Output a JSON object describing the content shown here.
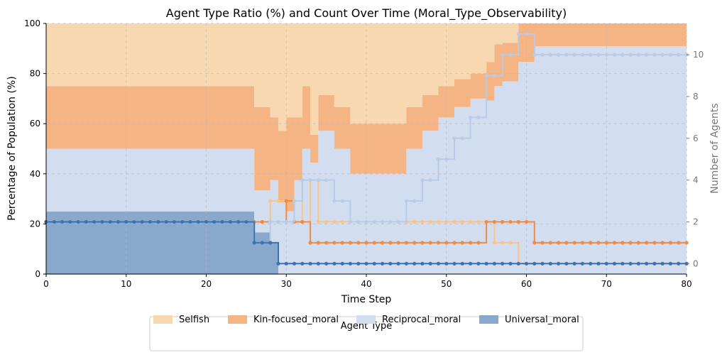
{
  "chart_data": {
    "type": "area",
    "title": "Agent Type Ratio (%) and Count Over Time (Moral_Type_Observability)",
    "xlabel": "Time Step",
    "ylabel": "Percentage of Population (%)",
    "y2label": "Number of Agents",
    "xlim": [
      0,
      80
    ],
    "ylim": [
      0,
      100
    ],
    "y2lim": [
      -0.5,
      11.5
    ],
    "xticks": [
      0,
      10,
      20,
      30,
      40,
      50,
      60,
      70,
      80
    ],
    "yticks": [
      0,
      20,
      40,
      60,
      80,
      100
    ],
    "y2ticks": [
      0,
      2,
      4,
      6,
      8,
      10
    ],
    "grid": true,
    "legend": {
      "title": "Agent Type",
      "placement": "bottom-center",
      "entries": [
        "Selfish",
        "Kin-focused_moral",
        "Reciprocal_moral",
        "Universal_moral"
      ]
    },
    "colors": {
      "Selfish_area": "#f8d8b0",
      "Kin-focused_moral_area": "#f4b483",
      "Reciprocal_moral_area": "#d3ddf0",
      "Universal_moral_area": "#89a9cc",
      "Selfish_line": "#f8c48c",
      "Kin-focused_moral_line": "#ef8b44",
      "Reciprocal_moral_line": "#b9cbe5",
      "Universal_moral_line": "#3b72b0"
    },
    "series": [
      {
        "name": "Selfish",
        "counts": [
          2,
          2,
          2,
          2,
          2,
          2,
          2,
          2,
          2,
          2,
          2,
          2,
          2,
          2,
          2,
          2,
          2,
          2,
          2,
          2,
          2,
          2,
          2,
          2,
          2,
          2,
          2,
          2,
          3,
          3,
          3,
          3,
          2,
          4,
          2,
          2,
          2,
          2,
          2,
          2,
          2,
          2,
          2,
          2,
          2,
          2,
          2,
          2,
          2,
          2,
          2,
          2,
          2,
          2,
          2,
          2,
          1,
          1,
          1,
          0,
          0,
          0,
          0,
          0,
          0,
          0,
          0,
          0,
          0,
          0,
          0,
          0,
          0,
          0,
          0,
          0,
          0,
          0,
          0,
          0,
          0
        ]
      },
      {
        "name": "Kin-focused_moral",
        "counts": [
          2,
          2,
          2,
          2,
          2,
          2,
          2,
          2,
          2,
          2,
          2,
          2,
          2,
          2,
          2,
          2,
          2,
          2,
          2,
          2,
          2,
          2,
          2,
          2,
          2,
          2,
          2,
          2,
          2,
          2,
          3,
          2,
          2,
          1,
          1,
          1,
          1,
          1,
          1,
          1,
          1,
          1,
          1,
          1,
          1,
          1,
          1,
          1,
          1,
          1,
          1,
          1,
          1,
          1,
          1,
          2,
          2,
          2,
          2,
          2,
          2,
          1,
          1,
          1,
          1,
          1,
          1,
          1,
          1,
          1,
          1,
          1,
          1,
          1,
          1,
          1,
          1,
          1,
          1,
          1,
          1
        ]
      },
      {
        "name": "Reciprocal_moral",
        "counts": [
          2,
          2,
          2,
          2,
          2,
          2,
          2,
          2,
          2,
          2,
          2,
          2,
          2,
          2,
          2,
          2,
          2,
          2,
          2,
          2,
          2,
          2,
          2,
          2,
          2,
          2,
          1,
          1,
          2,
          2,
          2,
          3,
          4,
          4,
          4,
          4,
          3,
          3,
          2,
          2,
          2,
          2,
          2,
          2,
          2,
          3,
          3,
          4,
          4,
          5,
          5,
          6,
          6,
          7,
          7,
          9,
          9,
          10,
          10,
          11,
          11,
          10,
          10,
          10,
          10,
          10,
          10,
          10,
          10,
          10,
          10,
          10,
          10,
          10,
          10,
          10,
          10,
          10,
          10,
          10,
          10
        ]
      },
      {
        "name": "Universal_moral",
        "counts": [
          2,
          2,
          2,
          2,
          2,
          2,
          2,
          2,
          2,
          2,
          2,
          2,
          2,
          2,
          2,
          2,
          2,
          2,
          2,
          2,
          2,
          2,
          2,
          2,
          2,
          2,
          1,
          1,
          1,
          0,
          0,
          0,
          0,
          0,
          0,
          0,
          0,
          0,
          0,
          0,
          0,
          0,
          0,
          0,
          0,
          0,
          0,
          0,
          0,
          0,
          0,
          0,
          0,
          0,
          0,
          0,
          0,
          0,
          0,
          0,
          0,
          0,
          0,
          0,
          0,
          0,
          0,
          0,
          0,
          0,
          0,
          0,
          0,
          0,
          0,
          0,
          0,
          0,
          0,
          0,
          0
        ]
      }
    ]
  }
}
